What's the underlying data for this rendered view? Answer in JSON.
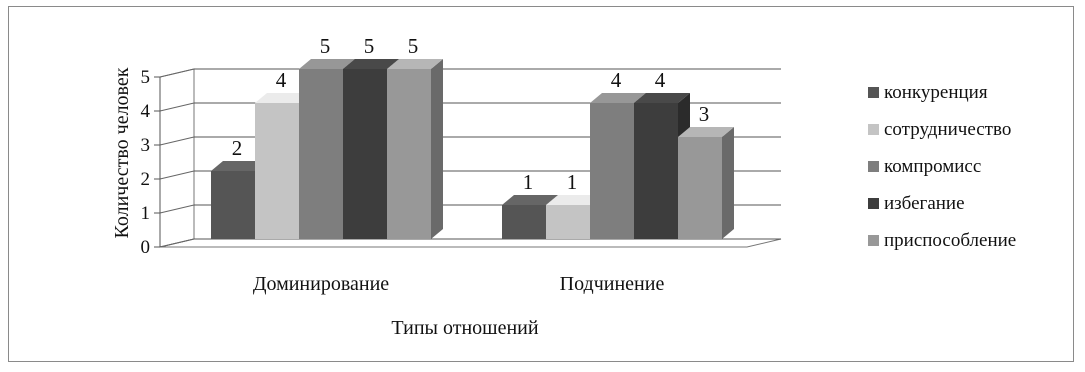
{
  "chart_data": {
    "type": "bar",
    "style": "3d-clustered-column",
    "categories": [
      "Доминирование",
      "Подчинение"
    ],
    "series": [
      {
        "name": "конкуренция",
        "values": [
          2,
          1
        ],
        "color": "#555555"
      },
      {
        "name": "сотрудничество",
        "values": [
          4,
          1
        ],
        "color": "#c4c4c4"
      },
      {
        "name": "компромисс",
        "values": [
          5,
          4
        ],
        "color": "#7e7e7e"
      },
      {
        "name": "избегание",
        "values": [
          5,
          4
        ],
        "color": "#3d3d3d"
      },
      {
        "name": "приспособление",
        "values": [
          5,
          3
        ],
        "color": "#989898"
      }
    ],
    "xlabel": "Типы отношений",
    "ylabel": "Количество человек",
    "yticks": [
      "0",
      "1",
      "2",
      "3",
      "4",
      "5"
    ],
    "ylim": [
      0,
      5
    ],
    "grid": true,
    "data_labels": true,
    "legend_position": "right"
  }
}
